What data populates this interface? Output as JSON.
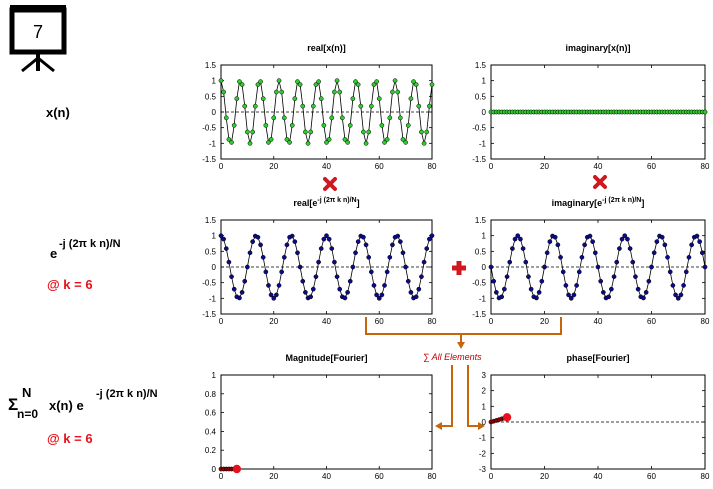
{
  "slide": {
    "number": "7"
  },
  "labels": {
    "row1": "x(n)",
    "row2_main": "e",
    "row2_exp": "-j (2π k n)/N",
    "row2_k": "@ k = 6",
    "row3_sigma": "Σ",
    "row3_upper": "N",
    "row3_lower": "n=0",
    "row3_body": "x(n) e",
    "row3_exp": "-j (2π k n)/N",
    "row3_k": "@ k = 6",
    "sum_note": "∑ All Elements"
  },
  "colors": {
    "green": "#2ecc2e",
    "navy": "#0b0b8a",
    "red": "#e8101a",
    "orange": "#c8640a"
  },
  "chart_data": [
    {
      "id": "real_x",
      "type": "line",
      "title": "real[x(n)]",
      "title_sup": "",
      "xlim": [
        0,
        80
      ],
      "ylim": [
        -1.5,
        1.5
      ],
      "xticks": [
        0,
        20,
        40,
        60,
        80
      ],
      "yticks": [
        1.5,
        1,
        0.5,
        0,
        -0.5,
        -1,
        -1.5
      ],
      "ytick_labels": [
        "1.5",
        "1",
        "0.5",
        "0",
        "-0.5",
        "-1",
        "-1.5"
      ],
      "series": [
        {
          "color": "#2ecc2e",
          "x": [
            0,
            1,
            2,
            3,
            4,
            5,
            6,
            7,
            8,
            9,
            10,
            11,
            12,
            13,
            14,
            15,
            16,
            17,
            18,
            19,
            20,
            21,
            22,
            23,
            24,
            25,
            26,
            27,
            28,
            29,
            30,
            31,
            32,
            33,
            34,
            35,
            36,
            37,
            38,
            39,
            40,
            41,
            42,
            43,
            44,
            45,
            46,
            47,
            48,
            49,
            50,
            51,
            52,
            53,
            54,
            55,
            56,
            57,
            58,
            59,
            60,
            61,
            62,
            63,
            64,
            65,
            66,
            67,
            68,
            69,
            70,
            71,
            72,
            73,
            74,
            75,
            76,
            77,
            78,
            79,
            80
          ],
          "y": [
            1,
            0.637,
            -0.187,
            -0.876,
            -0.969,
            -0.426,
            0.426,
            0.969,
            0.876,
            0.187,
            -0.637,
            -1,
            -0.637,
            0.187,
            0.876,
            0.969,
            0.426,
            -0.426,
            -0.969,
            -0.876,
            -0.187,
            0.637,
            1,
            0.637,
            -0.187,
            -0.876,
            -0.969,
            -0.426,
            0.426,
            0.969,
            0.876,
            0.187,
            -0.637,
            -1,
            -0.637,
            0.187,
            0.876,
            0.969,
            0.426,
            -0.426,
            -0.969,
            -0.876,
            -0.187,
            0.637,
            1,
            0.637,
            -0.187,
            -0.876,
            -0.969,
            -0.426,
            0.426,
            0.969,
            0.876,
            0.187,
            -0.637,
            -1,
            -0.637,
            0.187,
            0.876,
            0.969,
            0.426,
            -0.426,
            -0.969,
            -0.876,
            -0.187,
            0.637,
            1,
            0.637,
            -0.187,
            -0.876,
            -0.969,
            -0.426,
            0.426,
            0.969,
            0.876,
            0.187,
            -0.637,
            -1,
            -0.637,
            0.187,
            0.876
          ]
        }
      ],
      "dashed_zero": true
    },
    {
      "id": "imag_x",
      "type": "line",
      "title": "imaginary[x(n)]",
      "title_sup": "",
      "xlim": [
        0,
        80
      ],
      "ylim": [
        -1.5,
        1.5
      ],
      "xticks": [
        0,
        20,
        40,
        60,
        80
      ],
      "yticks": [
        1.5,
        1,
        0.5,
        0,
        -0.5,
        -1,
        -1.5
      ],
      "ytick_labels": [
        "1.5",
        "1",
        "0.5",
        "0",
        "-0.5",
        "-1",
        "-1.5"
      ],
      "series": [
        {
          "color": "#2ecc2e",
          "x": [
            0,
            1,
            2,
            3,
            4,
            5,
            6,
            7,
            8,
            9,
            10,
            11,
            12,
            13,
            14,
            15,
            16,
            17,
            18,
            19,
            20,
            21,
            22,
            23,
            24,
            25,
            26,
            27,
            28,
            29,
            30,
            31,
            32,
            33,
            34,
            35,
            36,
            37,
            38,
            39,
            40,
            41,
            42,
            43,
            44,
            45,
            46,
            47,
            48,
            49,
            50,
            51,
            52,
            53,
            54,
            55,
            56,
            57,
            58,
            59,
            60,
            61,
            62,
            63,
            64,
            65,
            66,
            67,
            68,
            69,
            70,
            71,
            72,
            73,
            74,
            75,
            76,
            77,
            78,
            79,
            80
          ],
          "y": [
            0,
            0,
            0,
            0,
            0,
            0,
            0,
            0,
            0,
            0,
            0,
            0,
            0,
            0,
            0,
            0,
            0,
            0,
            0,
            0,
            0,
            0,
            0,
            0,
            0,
            0,
            0,
            0,
            0,
            0,
            0,
            0,
            0,
            0,
            0,
            0,
            0,
            0,
            0,
            0,
            0,
            0,
            0,
            0,
            0,
            0,
            0,
            0,
            0,
            0,
            0,
            0,
            0,
            0,
            0,
            0,
            0,
            0,
            0,
            0,
            0,
            0,
            0,
            0,
            0,
            0,
            0,
            0,
            0,
            0,
            0,
            0,
            0,
            0,
            0,
            0,
            0,
            0,
            0,
            0,
            0
          ]
        }
      ],
      "dashed_zero": true
    },
    {
      "id": "real_e",
      "type": "line",
      "title": "real[e",
      "title_sup": "-j (2π k n)/N",
      "title_end": "]",
      "xlim": [
        0,
        80
      ],
      "ylim": [
        -1.5,
        1.5
      ],
      "xticks": [
        0,
        20,
        40,
        60,
        80
      ],
      "yticks": [
        1.5,
        1,
        0.5,
        0,
        -0.5,
        -1,
        -1.5
      ],
      "ytick_labels": [
        "1.5",
        "1",
        "0.5",
        "0",
        "-0.5",
        "-1",
        "-1.5"
      ],
      "series": [
        {
          "color": "#0b0b8a",
          "x": [
            0,
            1,
            2,
            3,
            4,
            5,
            6,
            7,
            8,
            9,
            10,
            11,
            12,
            13,
            14,
            15,
            16,
            17,
            18,
            19,
            20,
            21,
            22,
            23,
            24,
            25,
            26,
            27,
            28,
            29,
            30,
            31,
            32,
            33,
            34,
            35,
            36,
            37,
            38,
            39,
            40,
            41,
            42,
            43,
            44,
            45,
            46,
            47,
            48,
            49,
            50,
            51,
            52,
            53,
            54,
            55,
            56,
            57,
            58,
            59,
            60,
            61,
            62,
            63,
            64,
            65,
            66,
            67,
            68,
            69,
            70,
            71,
            72,
            73,
            74,
            75,
            76,
            77,
            78,
            79,
            80
          ],
          "y": [
            1,
            0.891,
            0.588,
            0.156,
            -0.309,
            -0.707,
            -0.951,
            -0.988,
            -0.809,
            -0.454,
            0,
            0.454,
            0.809,
            0.988,
            0.951,
            0.707,
            0.309,
            -0.156,
            -0.588,
            -0.891,
            -1,
            -0.891,
            -0.588,
            -0.156,
            0.309,
            0.707,
            0.951,
            0.988,
            0.809,
            0.454,
            0,
            -0.454,
            -0.809,
            -0.988,
            -0.951,
            -0.707,
            -0.309,
            0.156,
            0.588,
            0.891,
            1,
            0.891,
            0.588,
            0.156,
            -0.309,
            -0.707,
            -0.951,
            -0.988,
            -0.809,
            -0.454,
            0,
            0.454,
            0.809,
            0.988,
            0.951,
            0.707,
            0.309,
            -0.156,
            -0.588,
            -0.891,
            -1,
            -0.891,
            -0.588,
            -0.156,
            0.309,
            0.707,
            0.951,
            0.988,
            0.809,
            0.454,
            0,
            -0.454,
            -0.809,
            -0.988,
            -0.951,
            -0.707,
            -0.309,
            0.156,
            0.588,
            0.891,
            1
          ]
        }
      ],
      "dashed_zero": true
    },
    {
      "id": "imag_e",
      "type": "line",
      "title": "imaginary[e",
      "title_sup": "-j (2π k n)/N",
      "title_end": "]",
      "xlim": [
        0,
        80
      ],
      "ylim": [
        -1.5,
        1.5
      ],
      "xticks": [
        0,
        20,
        40,
        60,
        80
      ],
      "yticks": [
        1.5,
        1,
        0.5,
        0,
        -0.5,
        -1,
        -1.5
      ],
      "ytick_labels": [
        "1.5",
        "1",
        "0.5",
        "0",
        "-0.5",
        "-1",
        "-1.5"
      ],
      "series": [
        {
          "color": "#0b0b8a",
          "x": [
            0,
            1,
            2,
            3,
            4,
            5,
            6,
            7,
            8,
            9,
            10,
            11,
            12,
            13,
            14,
            15,
            16,
            17,
            18,
            19,
            20,
            21,
            22,
            23,
            24,
            25,
            26,
            27,
            28,
            29,
            30,
            31,
            32,
            33,
            34,
            35,
            36,
            37,
            38,
            39,
            40,
            41,
            42,
            43,
            44,
            45,
            46,
            47,
            48,
            49,
            50,
            51,
            52,
            53,
            54,
            55,
            56,
            57,
            58,
            59,
            60,
            61,
            62,
            63,
            64,
            65,
            66,
            67,
            68,
            69,
            70,
            71,
            72,
            73,
            74,
            75,
            76,
            77,
            78,
            79,
            80
          ],
          "y": [
            0,
            -0.454,
            -0.809,
            -0.988,
            -0.951,
            -0.707,
            -0.309,
            0.156,
            0.588,
            0.891,
            1,
            0.891,
            0.588,
            0.156,
            -0.309,
            -0.707,
            -0.951,
            -0.988,
            -0.809,
            -0.454,
            0,
            0.454,
            0.809,
            0.988,
            0.951,
            0.707,
            0.309,
            -0.156,
            -0.588,
            -0.891,
            -1,
            -0.891,
            -0.588,
            -0.156,
            0.309,
            0.707,
            0.951,
            0.988,
            0.809,
            0.454,
            0,
            -0.454,
            -0.809,
            -0.988,
            -0.951,
            -0.707,
            -0.309,
            0.156,
            0.588,
            0.891,
            1,
            0.891,
            0.588,
            0.156,
            -0.309,
            -0.707,
            -0.951,
            -0.988,
            -0.809,
            -0.454,
            0,
            0.454,
            0.809,
            0.988,
            0.951,
            0.707,
            0.309,
            -0.156,
            -0.588,
            -0.891,
            -1,
            -0.891,
            -0.588,
            -0.156,
            0.309,
            0.707,
            0.951,
            0.988,
            0.809,
            0.454,
            0
          ]
        }
      ],
      "dashed_zero": true
    },
    {
      "id": "magnitude",
      "type": "line",
      "title": "Magnitude[Fourier]",
      "title_sup": "",
      "xlim": [
        0,
        80
      ],
      "ylim": [
        0,
        1
      ],
      "xticks": [
        0,
        20,
        40,
        60,
        80
      ],
      "yticks": [
        1,
        0.8,
        0.6,
        0.4,
        0.2,
        0
      ],
      "ytick_labels": [
        "1",
        "0.8",
        "0.6",
        "0.4",
        "0.2",
        "0"
      ],
      "series": [
        {
          "color": "#8b0000",
          "x": [
            0,
            1,
            2,
            3,
            4,
            5,
            6
          ],
          "y": [
            0,
            0,
            0,
            0,
            0,
            0,
            0
          ]
        }
      ],
      "dashed_zero": true,
      "highlight": {
        "x": 6,
        "y": 0,
        "color": "#e8101a"
      }
    },
    {
      "id": "phase",
      "type": "line",
      "title": "phase[Fourier]",
      "title_sup": "",
      "xlim": [
        0,
        80
      ],
      "ylim": [
        -3,
        3
      ],
      "xticks": [
        0,
        20,
        40,
        60,
        80
      ],
      "yticks": [
        3,
        2,
        1,
        0,
        -1,
        -2,
        -3
      ],
      "ytick_labels": [
        "3",
        "2",
        "1",
        "0",
        "-1",
        "-2",
        "-3"
      ],
      "series": [
        {
          "color": "#8b0000",
          "x": [
            0,
            1,
            2,
            3,
            4,
            5,
            6
          ],
          "y": [
            0,
            0.05,
            0.1,
            0.15,
            0.2,
            0.25,
            0.3
          ]
        }
      ],
      "dashed_zero": true,
      "highlight": {
        "x": 6,
        "y": 0.3,
        "color": "#e8101a"
      }
    }
  ]
}
